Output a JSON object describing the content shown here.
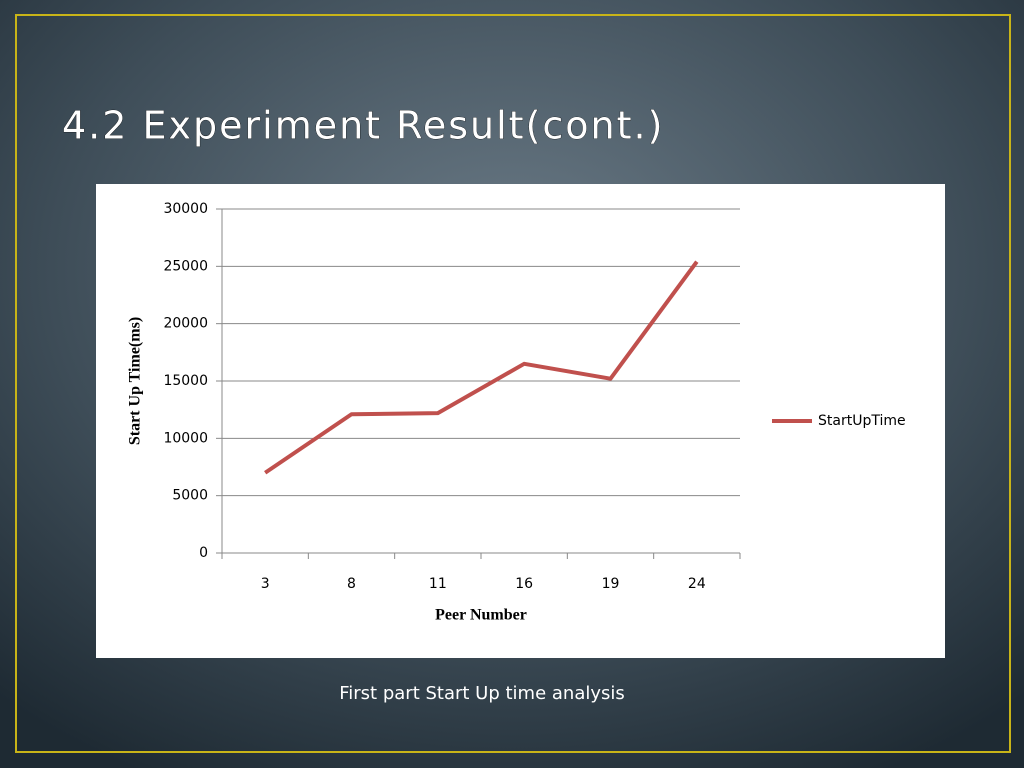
{
  "slide_title": "4.2 Experiment Result(cont.)",
  "caption": "First part Start Up time analysis",
  "chart_data": {
    "type": "line",
    "x_label": "Peer Number",
    "y_label": "Start Up Time(ms)",
    "categories": [
      "3",
      "8",
      "11",
      "16",
      "19",
      "24"
    ],
    "series": [
      {
        "name": "StartUpTime",
        "color": "#c0504d",
        "values": [
          7000,
          12100,
          12200,
          16500,
          15200,
          25400
        ]
      }
    ],
    "ylim": [
      0,
      30000
    ],
    "yticks": [
      0,
      5000,
      10000,
      15000,
      20000,
      25000,
      30000
    ],
    "grid": true,
    "legend": "right"
  }
}
